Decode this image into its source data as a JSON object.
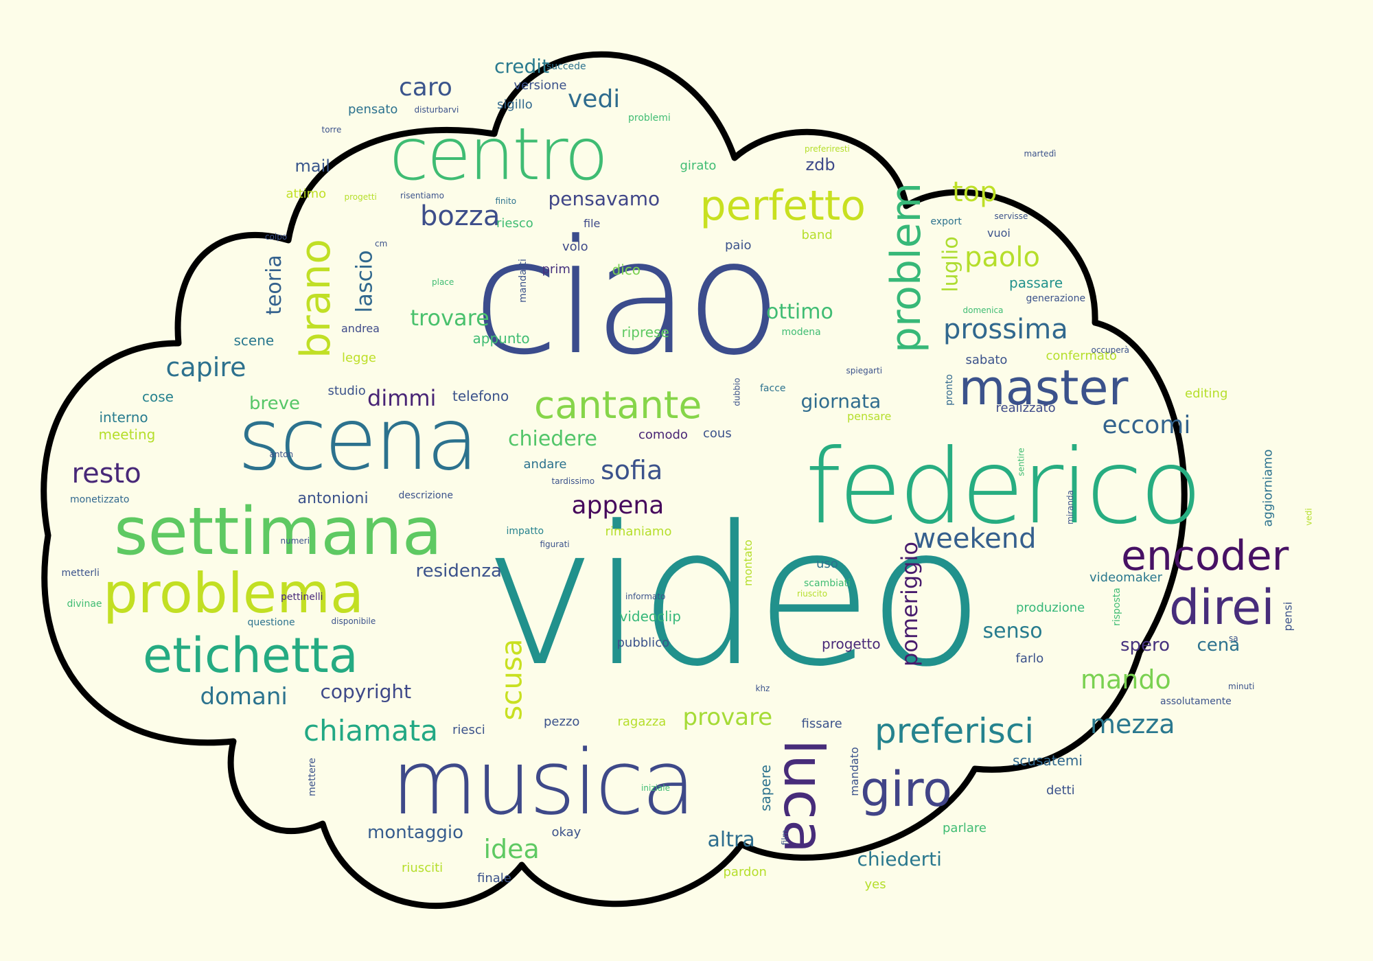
{
  "palette": [
    "#440154",
    "#482878",
    "#3e4a89",
    "#31688e",
    "#26828e",
    "#1f9e89",
    "#35b779",
    "#6ece58",
    "#b5de2b",
    "#d8e219"
  ],
  "words": [
    {
      "text": "video",
      "color": "#21918c"
    },
    {
      "text": "ciao",
      "color": "#3b4c8c"
    },
    {
      "text": "federico",
      "color": "#27ad81"
    },
    {
      "text": "scena",
      "color": "#2c728e"
    },
    {
      "text": "musica",
      "color": "#3e4989"
    },
    {
      "text": "centro",
      "color": "#3fbc73"
    },
    {
      "text": "settimana",
      "color": "#5ec962"
    },
    {
      "text": "problema",
      "color": "#c2df23"
    },
    {
      "text": "etichetta",
      "color": "#25ab82"
    },
    {
      "text": "encoder",
      "color": "#471164"
    },
    {
      "text": "master",
      "color": "#3b528b"
    },
    {
      "text": "direi",
      "color": "#472d7b"
    },
    {
      "text": "perfetto",
      "color": "#c8e020"
    },
    {
      "text": "cantante",
      "color": "#86d549"
    },
    {
      "text": "luca",
      "color": "#472c7a"
    },
    {
      "text": "problem",
      "color": "#37b878"
    },
    {
      "text": "brano",
      "color": "#c0df25"
    },
    {
      "text": "giro",
      "color": "#414487"
    },
    {
      "text": "preferisci",
      "color": "#25838e"
    },
    {
      "text": "chiamata",
      "color": "#22a884"
    },
    {
      "text": "weekend",
      "color": "#355f8d"
    },
    {
      "text": "prossima",
      "color": "#31688e"
    },
    {
      "text": "mezza",
      "color": "#2a788e"
    },
    {
      "text": "bozza",
      "color": "#3d4e8a"
    },
    {
      "text": "top",
      "color": "#bddf26"
    },
    {
      "text": "paolo",
      "color": "#b5de2b"
    },
    {
      "text": "eccomi",
      "color": "#33638d"
    },
    {
      "text": "resto",
      "color": "#482878"
    },
    {
      "text": "capire",
      "color": "#2d718e"
    },
    {
      "text": "domani",
      "color": "#2c738e"
    },
    {
      "text": "scusa",
      "color": "#c8e020"
    },
    {
      "text": "mando",
      "color": "#7ad151"
    },
    {
      "text": "appena",
      "color": "#46085c"
    },
    {
      "text": "sofia",
      "color": "#3b528b"
    },
    {
      "text": "pomeriggio",
      "color": "#481b6d"
    },
    {
      "text": "giornata",
      "color": "#2f6c8e"
    },
    {
      "text": "senso",
      "color": "#287c8e"
    },
    {
      "text": "idea",
      "color": "#5ec962"
    },
    {
      "text": "provare",
      "color": "#a5db36"
    },
    {
      "text": "lascio",
      "color": "#31688e"
    },
    {
      "text": "teoria",
      "color": "#34618d"
    },
    {
      "text": "vedi",
      "color": "#2f6c8e"
    },
    {
      "text": "caro",
      "color": "#3a548c"
    },
    {
      "text": "trovare",
      "color": "#4ac16d"
    },
    {
      "text": "ottimo",
      "color": "#3fbc73"
    },
    {
      "text": "pensavamo",
      "color": "#404688"
    },
    {
      "text": "luglio",
      "color": "#addc30"
    },
    {
      "text": "dimmi",
      "color": "#482475"
    },
    {
      "text": "chiedere",
      "color": "#52c569"
    },
    {
      "text": "credit",
      "color": "#297a8e"
    },
    {
      "text": "copyright",
      "color": "#3e4989"
    },
    {
      "text": "residenza",
      "color": "#3b528b"
    },
    {
      "text": "montaggio",
      "color": "#365c8d"
    },
    {
      "text": "altra",
      "color": "#2e6e8e"
    },
    {
      "text": "chiederti",
      "color": "#2a788e"
    },
    {
      "text": "spero",
      "color": "#46327e"
    },
    {
      "text": "cena",
      "color": "#2c728e"
    },
    {
      "text": "antonioni",
      "color": "#3b528b"
    },
    {
      "text": "breve",
      "color": "#56c667"
    },
    {
      "text": "mail",
      "color": "#39568c"
    },
    {
      "text": "zdb",
      "color": "#3e4a89"
    },
    {
      "text": "scene",
      "color": "#2a788e"
    },
    {
      "text": "telefono",
      "color": "#3b528b"
    },
    {
      "text": "interno",
      "color": "#287c8e"
    },
    {
      "text": "meeting",
      "color": "#b5de2b"
    },
    {
      "text": "cose",
      "color": "#26828e"
    },
    {
      "text": "studio",
      "color": "#3b528b"
    },
    {
      "text": "legge",
      "color": "#bddf26"
    },
    {
      "text": "andrea",
      "color": "#3e4a89"
    },
    {
      "text": "attimo",
      "color": "#c0df25"
    },
    {
      "text": "riesco",
      "color": "#3fbc73"
    },
    {
      "text": "file",
      "color": "#3e4989"
    },
    {
      "text": "volo",
      "color": "#3e4989"
    },
    {
      "text": "prim",
      "color": "#46327e"
    },
    {
      "text": "dico",
      "color": "#7ad151"
    },
    {
      "text": "appunto",
      "color": "#3fbc73"
    },
    {
      "text": "riprese",
      "color": "#5ec962"
    },
    {
      "text": "paio",
      "color": "#3b528b"
    },
    {
      "text": "band",
      "color": "#b5de2b"
    },
    {
      "text": "passare",
      "color": "#21918c"
    },
    {
      "text": "sabato",
      "color": "#3b528b"
    },
    {
      "text": "confermato",
      "color": "#b5de2b"
    },
    {
      "text": "editing",
      "color": "#b5de2b"
    },
    {
      "text": "realizzato",
      "color": "#3e4a89"
    },
    {
      "text": "pronto",
      "color": "#31688e"
    },
    {
      "text": "comodo",
      "color": "#482475"
    },
    {
      "text": "cous",
      "color": "#3b528b"
    },
    {
      "text": "andare",
      "color": "#2c728e"
    },
    {
      "text": "descrizione",
      "color": "#3b528b"
    },
    {
      "text": "monetizzato",
      "color": "#31688e"
    },
    {
      "text": "metterli",
      "color": "#3b528b"
    },
    {
      "text": "pettinelli",
      "color": "#482878"
    },
    {
      "text": "questione",
      "color": "#2c728e"
    },
    {
      "text": "divinae",
      "color": "#3fbc73"
    },
    {
      "text": "disponibile",
      "color": "#3b528b"
    },
    {
      "text": "rimaniamo",
      "color": "#b5de2b"
    },
    {
      "text": "impatto",
      "color": "#26828e"
    },
    {
      "text": "figurati",
      "color": "#3b528b"
    },
    {
      "text": "uso",
      "color": "#2c728e"
    },
    {
      "text": "scambiati",
      "color": "#3fbc73"
    },
    {
      "text": "riuscito",
      "color": "#b5de2b"
    },
    {
      "text": "informato",
      "color": "#3b528b"
    },
    {
      "text": "videoclip",
      "color": "#35b779"
    },
    {
      "text": "pubblico",
      "color": "#3b528b"
    },
    {
      "text": "progetto",
      "color": "#482878"
    },
    {
      "text": "produzione",
      "color": "#35b779"
    },
    {
      "text": "farlo",
      "color": "#3b528b"
    },
    {
      "text": "videomaker",
      "color": "#2a788e"
    },
    {
      "text": "montato",
      "color": "#b5de2b"
    },
    {
      "text": "pezzo",
      "color": "#3b528b"
    },
    {
      "text": "riesci",
      "color": "#3b528b"
    },
    {
      "text": "ragazza",
      "color": "#b5de2b"
    },
    {
      "text": "fissare",
      "color": "#3b528b"
    },
    {
      "text": "sapere",
      "color": "#2c728e"
    },
    {
      "text": "mandato",
      "color": "#3b528b"
    },
    {
      "text": "scusatemi",
      "color": "#31688e"
    },
    {
      "text": "detti",
      "color": "#3b528b"
    },
    {
      "text": "parlare",
      "color": "#3fbc73"
    },
    {
      "text": "okay",
      "color": "#3b528b"
    },
    {
      "text": "riusciti",
      "color": "#b5de2b"
    },
    {
      "text": "finale",
      "color": "#3b528b"
    },
    {
      "text": "pardon",
      "color": "#b5de2b"
    },
    {
      "text": "yes",
      "color": "#b5de2b"
    },
    {
      "text": "mettere",
      "color": "#3b528b"
    },
    {
      "text": "iniziale",
      "color": "#3fbc73"
    },
    {
      "text": "film",
      "color": "#3b528b"
    },
    {
      "text": "khz",
      "color": "#3b528b"
    },
    {
      "text": "versione",
      "color": "#3b528b"
    },
    {
      "text": "succede",
      "color": "#2c728e"
    },
    {
      "text": "sigillo",
      "color": "#31688e"
    },
    {
      "text": "pensato",
      "color": "#2c728e"
    },
    {
      "text": "disturbarvi",
      "color": "#3b528b"
    },
    {
      "text": "problemi",
      "color": "#3fbc73"
    },
    {
      "text": "girato",
      "color": "#3fbc73"
    },
    {
      "text": "torre",
      "color": "#3b528b"
    },
    {
      "text": "progetti",
      "color": "#b5de2b"
    },
    {
      "text": "risentiamo",
      "color": "#3b528b"
    },
    {
      "text": "finito",
      "color": "#2c728e"
    },
    {
      "text": "colpo",
      "color": "#3b528b"
    },
    {
      "text": "cm",
      "color": "#3b528b"
    },
    {
      "text": "place",
      "color": "#3fbc73"
    },
    {
      "text": "mandarti",
      "color": "#3b528b"
    },
    {
      "text": "martedì",
      "color": "#3b528b"
    },
    {
      "text": "preferiresti",
      "color": "#b5de2b"
    },
    {
      "text": "export",
      "color": "#2c728e"
    },
    {
      "text": "servisse",
      "color": "#3b528b"
    },
    {
      "text": "vuoi",
      "color": "#3b528b"
    },
    {
      "text": "domenica",
      "color": "#3fbc73"
    },
    {
      "text": "generazione",
      "color": "#3b528b"
    },
    {
      "text": "occuperà",
      "color": "#3b528b"
    },
    {
      "text": "spiegarti",
      "color": "#3b528b"
    },
    {
      "text": "dubbio",
      "color": "#3b528b"
    },
    {
      "text": "facce",
      "color": "#2c728e"
    },
    {
      "text": "modena",
      "color": "#3fbc73"
    },
    {
      "text": "pensare",
      "color": "#b5de2b"
    },
    {
      "text": "anton",
      "color": "#3b528b"
    },
    {
      "text": "sentire",
      "color": "#3fbc73"
    },
    {
      "text": "tardissimo",
      "color": "#3b528b"
    },
    {
      "text": "miranda",
      "color": "#3b528b"
    },
    {
      "text": "aggiorniamo",
      "color": "#2c728e"
    },
    {
      "text": "risposta",
      "color": "#3fbc73"
    },
    {
      "text": "pensi",
      "color": "#3b528b"
    },
    {
      "text": "sa",
      "color": "#3b528b"
    },
    {
      "text": "minuti",
      "color": "#3b528b"
    },
    {
      "text": "assolutamente",
      "color": "#3b528b"
    },
    {
      "text": "numeri",
      "color": "#3b528b"
    },
    {
      "text": "vedi",
      "color": "#b5de2b"
    }
  ]
}
